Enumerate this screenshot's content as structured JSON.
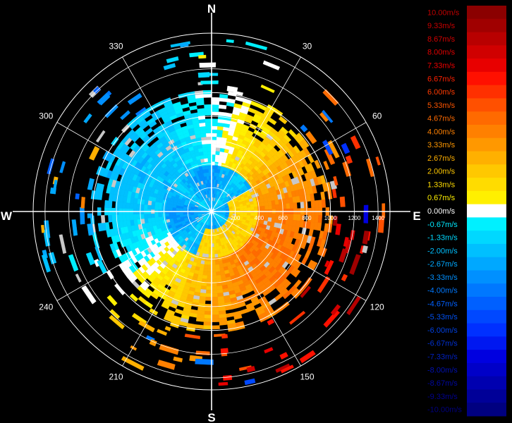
{
  "chart_data": {
    "type": "polar-radar-velocity",
    "cardinals": {
      "north": "N",
      "east": "E",
      "south": "S",
      "west": "W"
    },
    "bearing_labels": [
      {
        "deg": 30,
        "text": "30"
      },
      {
        "deg": 60,
        "text": "60"
      },
      {
        "deg": 120,
        "text": "120"
      },
      {
        "deg": 150,
        "text": "150"
      },
      {
        "deg": 210,
        "text": "210"
      },
      {
        "deg": 240,
        "text": "240"
      },
      {
        "deg": 300,
        "text": "300"
      },
      {
        "deg": 330,
        "text": "330"
      }
    ],
    "range_labels": [
      "200",
      "400",
      "600",
      "800",
      "1000",
      "1200",
      "1400"
    ],
    "range_max": 1500,
    "colorbar": [
      {
        "label": "10.00m/s",
        "color": "#8b0000",
        "text_color": "#c00000"
      },
      {
        "label": "9.33m/s",
        "color": "#a00000",
        "text_color": "#c80000"
      },
      {
        "label": "8.67m/s",
        "color": "#b80000",
        "text_color": "#d40000"
      },
      {
        "label": "8.00m/s",
        "color": "#d00000",
        "text_color": "#e00000"
      },
      {
        "label": "7.33m/s",
        "color": "#e80000",
        "text_color": "#f00000"
      },
      {
        "label": "6.67m/s",
        "color": "#ff1000",
        "text_color": "#ff2000"
      },
      {
        "label": "6.00m/s",
        "color": "#ff3000",
        "text_color": "#ff3a00"
      },
      {
        "label": "5.33m/s",
        "color": "#ff5000",
        "text_color": "#ff5500"
      },
      {
        "label": "4.67m/s",
        "color": "#ff6a00",
        "text_color": "#ff6a00"
      },
      {
        "label": "4.00m/s",
        "color": "#ff8000",
        "text_color": "#ff8000"
      },
      {
        "label": "3.33m/s",
        "color": "#ff9800",
        "text_color": "#ff9800"
      },
      {
        "label": "2.67m/s",
        "color": "#ffb000",
        "text_color": "#ffb000"
      },
      {
        "label": "2.00m/s",
        "color": "#ffc800",
        "text_color": "#ffc800"
      },
      {
        "label": "1.33m/s",
        "color": "#ffdc00",
        "text_color": "#ffdc00"
      },
      {
        "label": "0.67m/s",
        "color": "#fff000",
        "text_color": "#fff000"
      },
      {
        "label": "0.00m/s",
        "color": "#ffffff",
        "text_color": "#ffffff"
      },
      {
        "label": "-0.67m/s",
        "color": "#00f0ff",
        "text_color": "#00e8ff"
      },
      {
        "label": "-1.33m/s",
        "color": "#00d8ff",
        "text_color": "#00d8ff"
      },
      {
        "label": "-2.00m/s",
        "color": "#00c0ff",
        "text_color": "#00c0ff"
      },
      {
        "label": "-2.67m/s",
        "color": "#00a8ff",
        "text_color": "#00a8ff"
      },
      {
        "label": "-3.33m/s",
        "color": "#0090ff",
        "text_color": "#0090ff"
      },
      {
        "label": "-4.00m/s",
        "color": "#0078ff",
        "text_color": "#0078ff"
      },
      {
        "label": "-4.67m/s",
        "color": "#0060ff",
        "text_color": "#0060ff"
      },
      {
        "label": "-5.33m/s",
        "color": "#0048ff",
        "text_color": "#0050f0"
      },
      {
        "label": "-6.00m/s",
        "color": "#0030ff",
        "text_color": "#0040e0"
      },
      {
        "label": "-6.67m/s",
        "color": "#0018f0",
        "text_color": "#0030d0"
      },
      {
        "label": "-7.33m/s",
        "color": "#0000e0",
        "text_color": "#0020c0"
      },
      {
        "label": "-8.00m/s",
        "color": "#0000c8",
        "text_color": "#0010b0"
      },
      {
        "label": "-8.67m/s",
        "color": "#0000b0",
        "text_color": "#0008a0"
      },
      {
        "label": "-9.33m/s",
        "color": "#000098",
        "text_color": "#000090"
      },
      {
        "label": "-10.00m/s",
        "color": "#000080",
        "text_color": "#000080"
      }
    ],
    "velocity_field": {
      "description_model": "doppler-dipole",
      "max_velocity": 10,
      "positive_toward_bearing": 120,
      "inner_ring_radius": 400,
      "inner_ring_sign": -1,
      "core_range": 1000,
      "sparse_range": 1500
    }
  }
}
